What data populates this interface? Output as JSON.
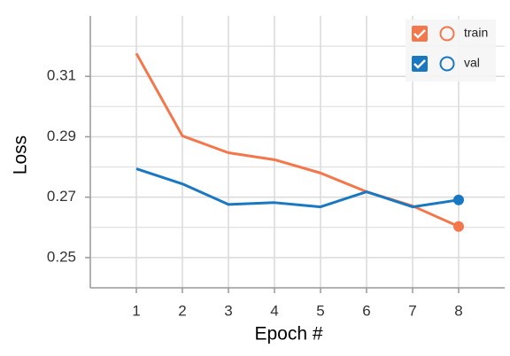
{
  "chart_data": {
    "type": "line",
    "x_label": "Epoch #",
    "y_label": "Loss",
    "x": [
      1,
      2,
      3,
      4,
      5,
      6,
      7,
      8
    ],
    "series": [
      {
        "name": "train",
        "color": "#f4774b",
        "values": [
          0.3176,
          0.2903,
          0.2847,
          0.2824,
          0.278,
          0.2718,
          0.2671,
          0.2603
        ]
      },
      {
        "name": "val",
        "color": "#1a78c2",
        "values": [
          0.2794,
          0.2744,
          0.2676,
          0.2682,
          0.2668,
          0.2718,
          0.2668,
          0.2691
        ]
      }
    ],
    "xlim": [
      0,
      9
    ],
    "xticks": [
      1,
      2,
      3,
      4,
      5,
      6,
      7,
      8
    ],
    "ylim": [
      0.24,
      0.33
    ],
    "yticks": [
      0.25,
      0.27,
      0.29,
      0.31
    ],
    "y_minor_ticks": [
      0.26,
      0.28,
      0.3,
      0.32
    ],
    "grid": true,
    "legend": "top-right"
  }
}
